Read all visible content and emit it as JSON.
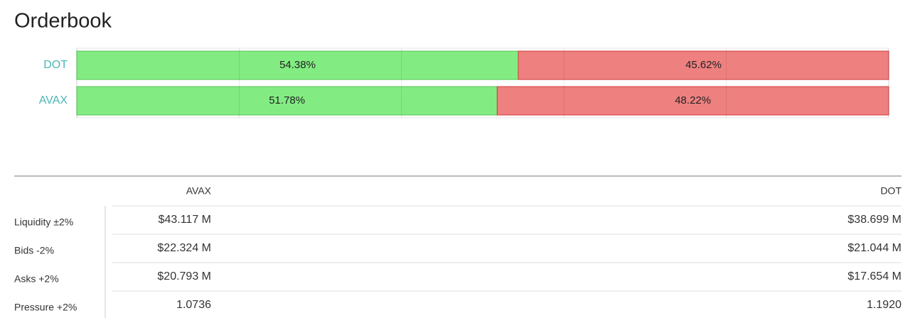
{
  "header": {
    "title": "Orderbook"
  },
  "chart_data": {
    "type": "stacked-bar-horizontal",
    "categories": [
      "DOT",
      "AVAX"
    ],
    "series": [
      {
        "color": "#82ec82",
        "values": [
          54.38,
          51.78
        ],
        "value_labels": [
          "54.38%",
          "51.78%"
        ]
      },
      {
        "color": "#ef8080",
        "values": [
          45.62,
          48.22
        ],
        "value_labels": [
          "45.62%",
          "48.22%"
        ]
      }
    ],
    "xlim": [
      0,
      100
    ],
    "xticks": [
      0,
      20,
      40,
      60,
      80,
      100
    ],
    "grid": true
  },
  "table": {
    "columns": [
      "AVAX",
      "DOT"
    ],
    "rows": [
      [
        "Liquidity ±2%",
        "$43.117 M",
        "$38.699 M"
      ],
      [
        "Bids -2%",
        "$22.324 M",
        "$21.044 M"
      ],
      [
        "Asks +2%",
        "$20.793 M",
        "$17.654 M"
      ],
      [
        "Pressure +2%",
        "1.0736",
        "1.1920"
      ]
    ]
  }
}
